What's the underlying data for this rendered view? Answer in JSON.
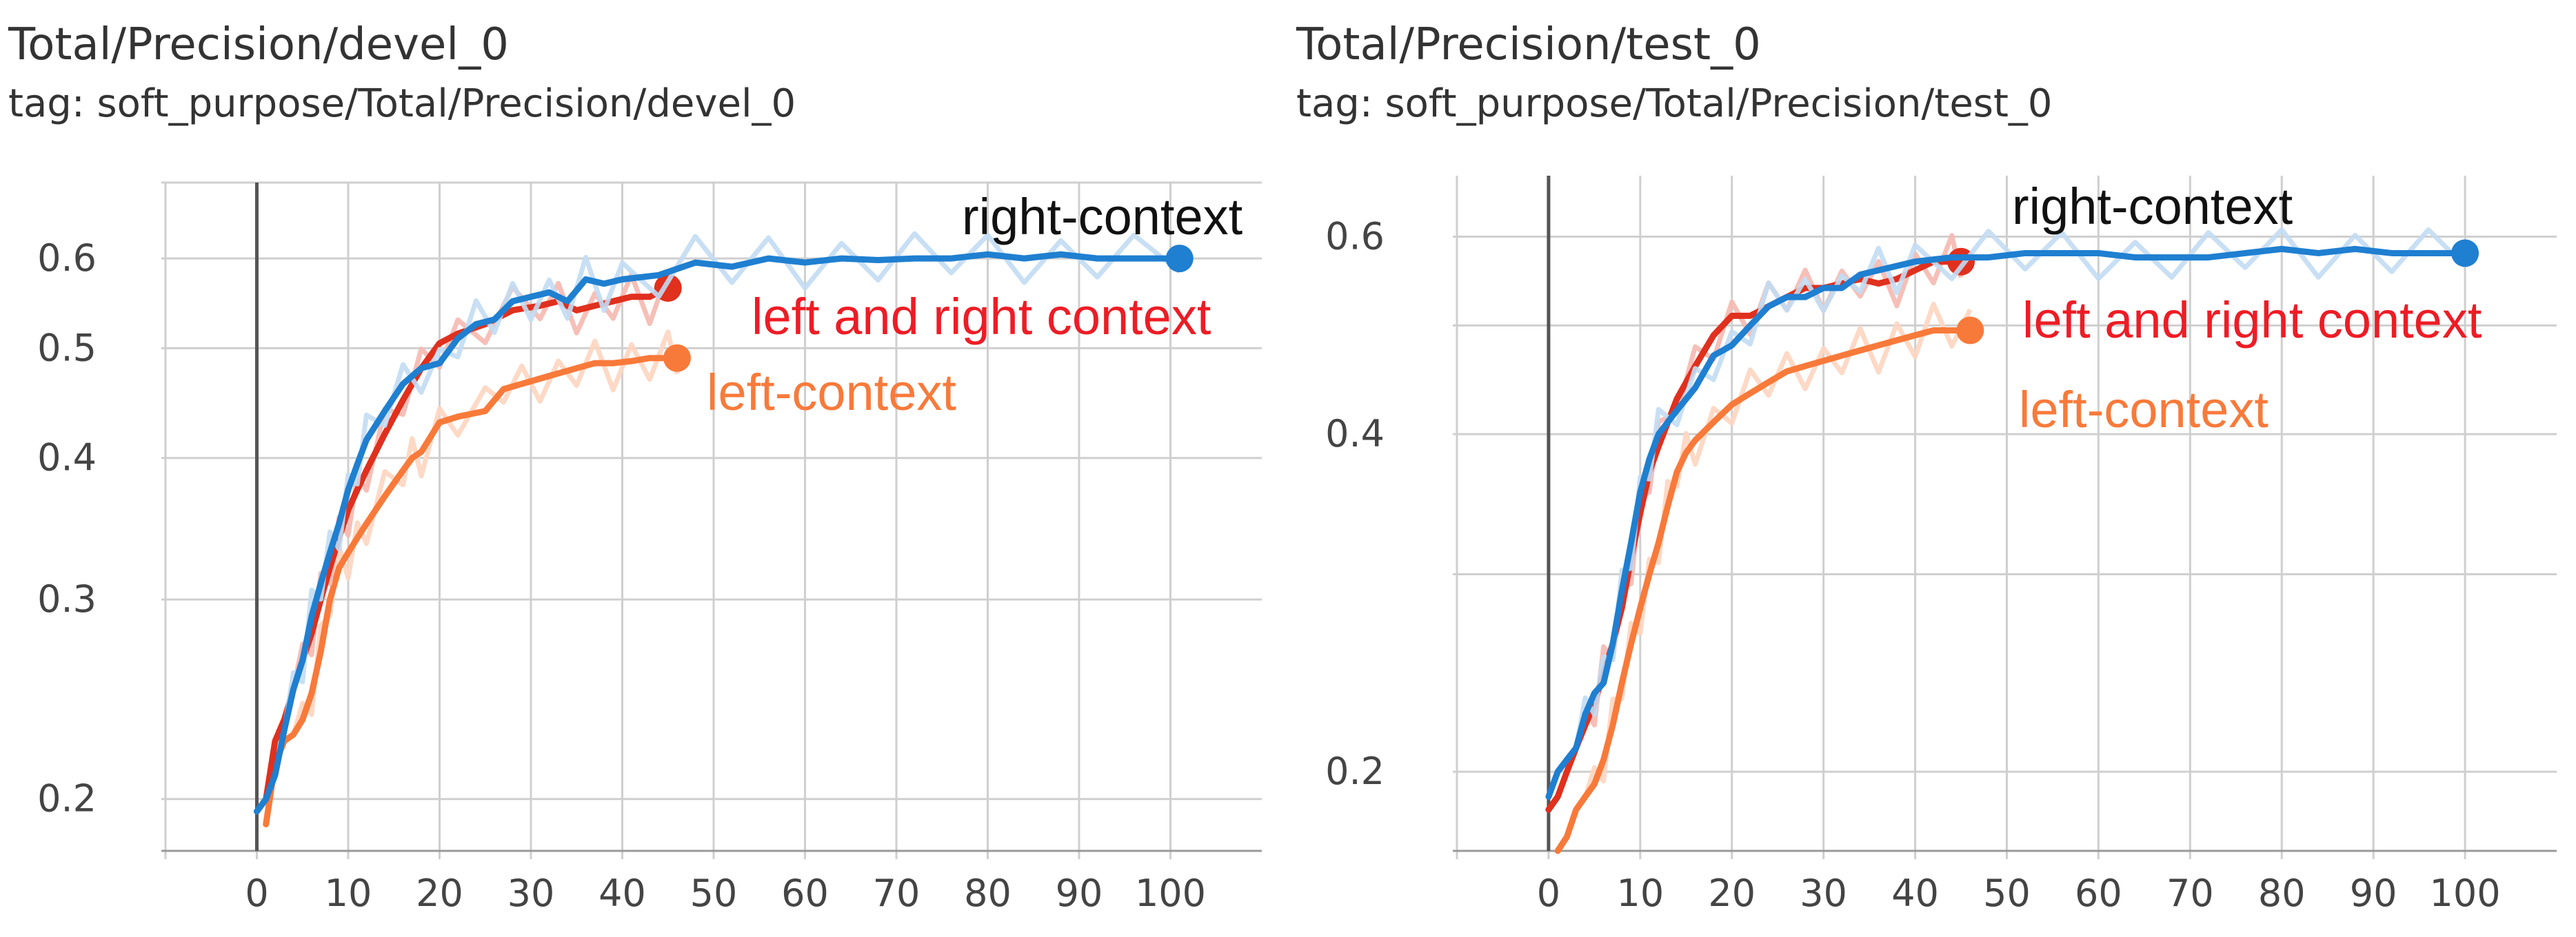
{
  "chart_data": [
    {
      "type": "line",
      "title": "Total/Precision/devel_0",
      "subtitle": "tag: soft_purpose/Total/Precision/devel_0",
      "x_ticks": [
        "0",
        "10",
        "20",
        "30",
        "40",
        "50",
        "60",
        "70",
        "80",
        "90",
        "100"
      ],
      "y_ticks": [
        "0.2",
        "0.3",
        "0.4",
        "0.5",
        "0.6"
      ],
      "xlim": [
        -10,
        110
      ],
      "ylim": [
        0.18,
        0.7
      ],
      "y_scale": "log",
      "grid": true,
      "series": [
        {
          "name": "left-context",
          "color": "#f87a3a",
          "ghost_color": "#fdd5c0",
          "x": [
            1,
            2,
            3,
            4,
            5,
            6,
            7,
            8,
            9,
            10,
            11,
            12,
            14,
            16,
            17,
            18,
            20,
            22,
            25,
            27,
            29,
            31,
            33,
            35,
            37,
            39,
            41,
            43,
            45,
            46
          ],
          "y": [
            0.19,
            0.215,
            0.225,
            0.228,
            0.235,
            0.248,
            0.27,
            0.3,
            0.32,
            0.33,
            0.34,
            0.35,
            0.37,
            0.39,
            0.4,
            0.405,
            0.43,
            0.435,
            0.44,
            0.46,
            0.465,
            0.47,
            0.475,
            0.48,
            0.485,
            0.485,
            0.487,
            0.49,
            0.49,
            0.49
          ]
        },
        {
          "name": "left and right context",
          "color": "#e0301e",
          "ghost_color": "#f5b8b0",
          "x": [
            1,
            2,
            3,
            4,
            5,
            6,
            7,
            8,
            9,
            10,
            11,
            12,
            14,
            16,
            18,
            20,
            22,
            25,
            28,
            31,
            33,
            35,
            37,
            39,
            41,
            43,
            45
          ],
          "y": [
            0.2,
            0.225,
            0.235,
            0.25,
            0.265,
            0.28,
            0.3,
            0.32,
            0.34,
            0.36,
            0.375,
            0.39,
            0.42,
            0.45,
            0.48,
            0.505,
            0.515,
            0.525,
            0.54,
            0.545,
            0.55,
            0.54,
            0.545,
            0.55,
            0.555,
            0.555,
            0.565
          ]
        },
        {
          "name": "right-context",
          "color": "#1f7fd0",
          "ghost_color": "#c2dcf3",
          "x": [
            0,
            1,
            2,
            3,
            4,
            5,
            6,
            7,
            8,
            9,
            10,
            11,
            12,
            14,
            16,
            18,
            20,
            22,
            24,
            26,
            28,
            30,
            32,
            34,
            36,
            38,
            40,
            44,
            48,
            52,
            56,
            60,
            64,
            68,
            72,
            76,
            80,
            84,
            88,
            92,
            96,
            101
          ],
          "y": [
            0.195,
            0.2,
            0.21,
            0.23,
            0.25,
            0.265,
            0.29,
            0.31,
            0.33,
            0.35,
            0.375,
            0.395,
            0.415,
            0.44,
            0.465,
            0.48,
            0.485,
            0.51,
            0.525,
            0.53,
            0.55,
            0.555,
            0.56,
            0.55,
            0.575,
            0.57,
            0.575,
            0.58,
            0.595,
            0.59,
            0.6,
            0.595,
            0.6,
            0.598,
            0.6,
            0.6,
            0.605,
            0.6,
            0.605,
            0.6,
            0.6,
            0.6
          ]
        }
      ],
      "annotations": [
        {
          "text": "right-context",
          "color": "#111111"
        },
        {
          "text": "left and right context",
          "color": "#ee1c25"
        },
        {
          "text": "left-context",
          "color": "#f87a3a"
        }
      ]
    },
    {
      "type": "line",
      "title": "Total/Precision/test_0",
      "subtitle": "tag: soft_purpose/Total/Precision/test_0",
      "x_ticks": [
        "0",
        "10",
        "20",
        "30",
        "40",
        "50",
        "60",
        "70",
        "80",
        "90",
        "100"
      ],
      "y_ticks": [
        "0.2",
        "0.4",
        "0.6"
      ],
      "xlim": [
        -10,
        110
      ],
      "ylim": [
        0.17,
        0.68
      ],
      "y_scale": "log",
      "grid": true,
      "series": [
        {
          "name": "left-context",
          "color": "#f87a3a",
          "ghost_color": "#fdd5c0",
          "x": [
            1,
            2,
            3,
            4,
            5,
            6,
            7,
            8,
            9,
            10,
            11,
            12,
            13,
            14,
            15,
            16,
            18,
            20,
            22,
            24,
            26,
            28,
            30,
            32,
            34,
            36,
            38,
            40,
            42,
            44,
            46
          ],
          "y": [
            0.17,
            0.175,
            0.185,
            0.19,
            0.195,
            0.205,
            0.22,
            0.24,
            0.26,
            0.28,
            0.3,
            0.32,
            0.345,
            0.37,
            0.385,
            0.395,
            0.41,
            0.425,
            0.435,
            0.445,
            0.455,
            0.46,
            0.465,
            0.47,
            0.475,
            0.48,
            0.485,
            0.49,
            0.495,
            0.495,
            0.495
          ]
        },
        {
          "name": "left and right context",
          "color": "#e0301e",
          "ghost_color": "#f5b8b0",
          "x": [
            0,
            1,
            2,
            3,
            4,
            5,
            6,
            7,
            8,
            9,
            10,
            11,
            12,
            14,
            16,
            18,
            20,
            22,
            24,
            26,
            28,
            30,
            32,
            34,
            36,
            38,
            40,
            42,
            44,
            45
          ],
          "y": [
            0.185,
            0.19,
            0.2,
            0.21,
            0.22,
            0.23,
            0.245,
            0.26,
            0.28,
            0.31,
            0.34,
            0.37,
            0.39,
            0.43,
            0.46,
            0.49,
            0.51,
            0.51,
            0.52,
            0.53,
            0.54,
            0.54,
            0.545,
            0.55,
            0.545,
            0.55,
            0.56,
            0.57,
            0.57,
            0.57
          ]
        },
        {
          "name": "right-context",
          "color": "#1f7fd0",
          "ghost_color": "#c2dcf3",
          "x": [
            0,
            1,
            2,
            3,
            4,
            5,
            6,
            7,
            8,
            9,
            10,
            11,
            12,
            14,
            16,
            18,
            20,
            22,
            24,
            26,
            28,
            30,
            32,
            34,
            36,
            38,
            40,
            44,
            48,
            52,
            56,
            60,
            64,
            68,
            72,
            76,
            80,
            84,
            88,
            92,
            96,
            100
          ],
          "y": [
            0.19,
            0.2,
            0.205,
            0.21,
            0.225,
            0.235,
            0.24,
            0.26,
            0.29,
            0.32,
            0.355,
            0.38,
            0.4,
            0.42,
            0.44,
            0.47,
            0.48,
            0.5,
            0.52,
            0.53,
            0.53,
            0.54,
            0.54,
            0.555,
            0.56,
            0.565,
            0.57,
            0.575,
            0.575,
            0.58,
            0.58,
            0.58,
            0.575,
            0.575,
            0.575,
            0.58,
            0.585,
            0.58,
            0.585,
            0.58,
            0.58,
            0.58
          ]
        }
      ],
      "annotations": [
        {
          "text": "right-context",
          "color": "#111111"
        },
        {
          "text": "left and right context",
          "color": "#ee1c25"
        },
        {
          "text": "left-context",
          "color": "#f87a3a"
        }
      ]
    }
  ]
}
